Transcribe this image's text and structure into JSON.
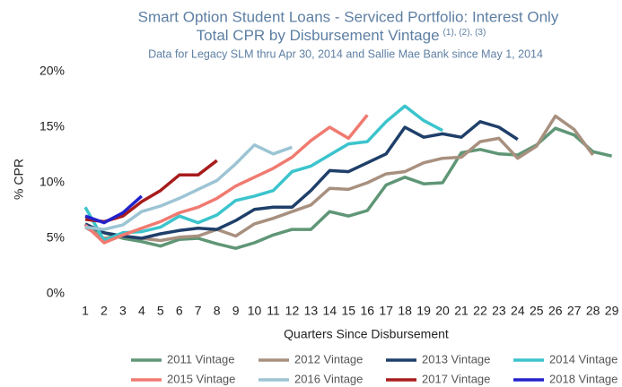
{
  "chart_data": {
    "type": "line",
    "title": [
      "Smart Option Student Loans - Serviced Portfolio: Interest Only",
      "Total CPR by Disbursement Vintage"
    ],
    "title_note": "(1), (2), (3)",
    "subtitle": "Data for Legacy SLM thru Apr 30, 2014 and Sallie Mae Bank since May 1, 2014",
    "x_label": "Quarters Since Disbursement",
    "y_label": "% CPR",
    "categories": [
      1,
      2,
      3,
      4,
      5,
      6,
      7,
      8,
      9,
      10,
      11,
      12,
      13,
      14,
      15,
      16,
      17,
      18,
      19,
      20,
      21,
      22,
      23,
      24,
      25,
      26,
      27,
      28,
      29
    ],
    "ylim": [
      0,
      20
    ],
    "yticks": [
      {
        "value": 0,
        "label": "0%"
      },
      {
        "value": 5,
        "label": "5%"
      },
      {
        "value": 10,
        "label": "10%"
      },
      {
        "value": 15,
        "label": "15%"
      },
      {
        "value": 20,
        "label": "20%"
      }
    ],
    "grid": false,
    "legend": "bottom",
    "series": [
      {
        "name": "2011 Vintage",
        "color": "#5f9676",
        "values": [
          6.0,
          5.5,
          5.0,
          4.7,
          4.3,
          4.9,
          5.0,
          4.5,
          4.1,
          4.6,
          5.3,
          5.8,
          5.8,
          7.4,
          7.0,
          7.5,
          9.8,
          10.5,
          9.9,
          10.0,
          12.7,
          13.0,
          12.6,
          12.5,
          13.4,
          14.9,
          14.3,
          12.8,
          12.4
        ]
      },
      {
        "name": "2012 Vintage",
        "color": "#a8907f",
        "values": [
          6.0,
          5.0,
          5.2,
          5.0,
          4.8,
          5.1,
          5.2,
          5.8,
          5.2,
          6.3,
          6.8,
          7.4,
          8.0,
          9.5,
          9.4,
          10.0,
          10.8,
          11.0,
          11.8,
          12.2,
          12.3,
          13.7,
          14.0,
          12.2,
          13.3,
          16.0,
          14.8,
          12.5,
          null
        ]
      },
      {
        "name": "2013 Vintage",
        "color": "#1f3f6a",
        "values": [
          6.3,
          5.5,
          5.2,
          5.0,
          5.4,
          5.7,
          5.9,
          5.8,
          6.6,
          7.6,
          7.8,
          7.8,
          9.3,
          11.1,
          11.0,
          11.8,
          12.6,
          15.0,
          14.1,
          14.4,
          14.1,
          15.5,
          15.0,
          13.9,
          null,
          null,
          null,
          null,
          null
        ]
      },
      {
        "name": "2014 Vintage",
        "color": "#3bc4cc",
        "values": [
          7.8,
          4.8,
          5.5,
          5.6,
          6.0,
          7.0,
          6.4,
          7.1,
          8.4,
          8.8,
          9.3,
          11.0,
          11.5,
          12.5,
          13.5,
          13.7,
          15.5,
          16.9,
          15.6,
          14.7,
          null,
          null,
          null,
          null,
          null,
          null,
          null,
          null,
          null
        ]
      },
      {
        "name": "2015 Vintage",
        "color": "#f07a70",
        "values": [
          6.2,
          4.6,
          5.3,
          5.9,
          6.5,
          7.3,
          7.8,
          8.6,
          9.7,
          10.5,
          11.3,
          12.3,
          13.8,
          15.0,
          14.0,
          16.1,
          null,
          null,
          null,
          null,
          null,
          null,
          null,
          null,
          null,
          null,
          null,
          null,
          null
        ]
      },
      {
        "name": "2016 Vintage",
        "color": "#9cc4d4",
        "values": [
          6.0,
          5.8,
          6.2,
          7.4,
          7.9,
          8.6,
          9.4,
          10.2,
          11.7,
          13.4,
          12.6,
          13.2,
          null,
          null,
          null,
          null,
          null,
          null,
          null,
          null,
          null,
          null,
          null,
          null,
          null,
          null,
          null,
          null,
          null
        ]
      },
      {
        "name": "2017 Vintage",
        "color": "#a81c1c",
        "values": [
          6.7,
          6.5,
          7.0,
          8.3,
          9.3,
          10.7,
          10.7,
          12.0,
          null,
          null,
          null,
          null,
          null,
          null,
          null,
          null,
          null,
          null,
          null,
          null,
          null,
          null,
          null,
          null,
          null,
          null,
          null,
          null,
          null
        ]
      },
      {
        "name": "2018 Vintage",
        "color": "#2222cc",
        "values": [
          7.0,
          6.4,
          7.3,
          8.8,
          null,
          null,
          null,
          null,
          null,
          null,
          null,
          null,
          null,
          null,
          null,
          null,
          null,
          null,
          null,
          null,
          null,
          null,
          null,
          null,
          null,
          null,
          null,
          null,
          null
        ]
      }
    ]
  }
}
